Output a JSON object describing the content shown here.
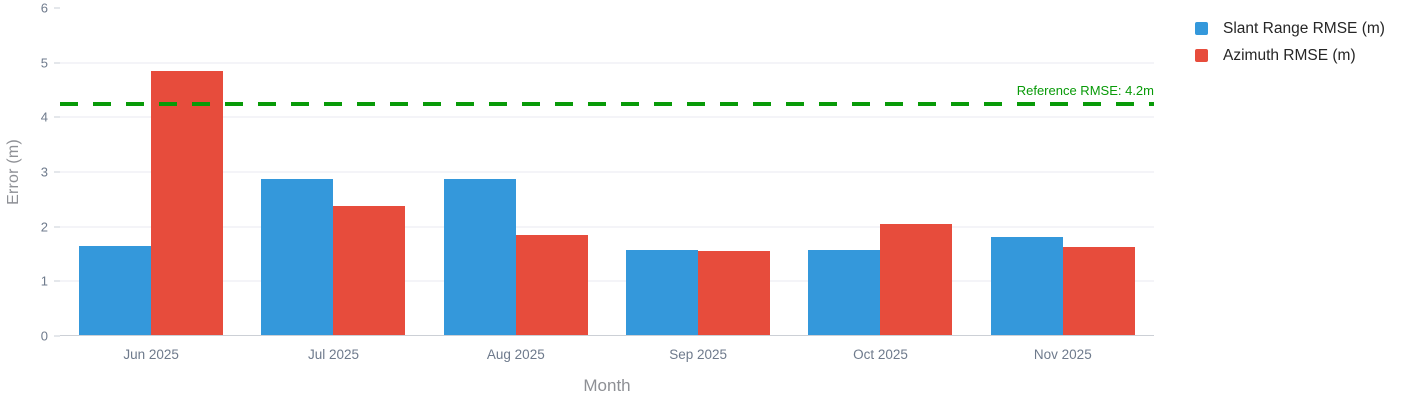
{
  "chart_data": {
    "type": "bar",
    "title": "",
    "xlabel": "Month",
    "ylabel": "Error (m)",
    "categories": [
      "Jun 2025",
      "Jul 2025",
      "Aug 2025",
      "Sep 2025",
      "Oct 2025",
      "Nov 2025"
    ],
    "series": [
      {
        "name": "Slant Range RMSE (m)",
        "color": "#3498db",
        "values": [
          1.65,
          2.88,
          2.88,
          1.58,
          1.57,
          1.81
        ]
      },
      {
        "name": "Azimuth RMSE (m)",
        "color": "#e74c3c",
        "values": [
          4.85,
          2.38,
          1.85,
          1.55,
          2.05,
          1.62
        ]
      }
    ],
    "ylim": [
      0,
      6
    ],
    "yticks": [
      0,
      1,
      2,
      3,
      4,
      5,
      6
    ],
    "grid": true,
    "legend_position": "top-right",
    "reference": {
      "label": "Reference RMSE: 4.2m",
      "value": 4.25,
      "color": "#089a08",
      "style": "dashed"
    }
  },
  "colors": {
    "bar_blue": "#3498db",
    "bar_red": "#e74c3c",
    "reference_green": "#089a08",
    "gridline": "#e8e9f1",
    "axis_line": "#ccd0d6",
    "tick_label": "#6e7a8c",
    "axis_title": "#8e9095",
    "legend_text": "#262626"
  }
}
